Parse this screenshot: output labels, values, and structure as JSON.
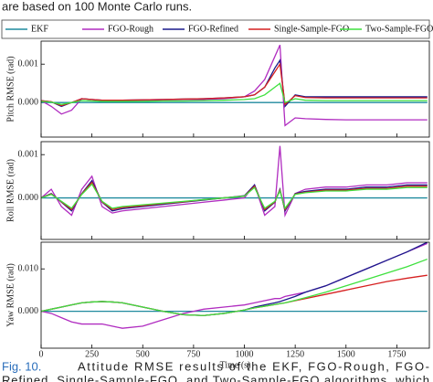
{
  "page": {
    "header_text": "are based on 100 Monte Carlo runs.",
    "caption": {
      "label": "Fig. 10.",
      "line1": "Attitude RMSE results of the EKF, FGO-Rough, FGO-",
      "line2": "Refined, Single-Sample-FGO, and Two-Sample-FGO algorithms, which"
    }
  },
  "chart_data": [
    {
      "type": "line",
      "ylabel": "Pitch RMSE (rad)",
      "x": [
        0,
        50,
        100,
        150,
        200,
        250,
        300,
        350,
        400,
        500,
        600,
        700,
        800,
        900,
        1000,
        1050,
        1100,
        1150,
        1175,
        1200,
        1250,
        1300,
        1400,
        1500,
        1600,
        1700,
        1800,
        1900
      ],
      "xlim": [
        0,
        1910
      ],
      "xticks": [
        0,
        250,
        500,
        750,
        1000,
        1250,
        1500,
        1750
      ],
      "ylim": [
        -0.0009,
        0.0016
      ],
      "yticks": [
        {
          "value": 0,
          "label": "0.000"
        },
        {
          "value": 0.001,
          "label": "0.001"
        }
      ],
      "series": [
        {
          "name": "EKF",
          "color": "#1f8a9e",
          "values": [
            0,
            0,
            0,
            0,
            0,
            0,
            0,
            0,
            0,
            0,
            0,
            0,
            0,
            0,
            0,
            0,
            0,
            0,
            0,
            0,
            0,
            0,
            0,
            0,
            0,
            0,
            0,
            0
          ]
        },
        {
          "name": "FGO-Rough",
          "color": "#b02cc0",
          "values": [
            5e-05,
            -0.0001,
            -0.0003,
            -0.0002,
            0.0001,
            8e-05,
            5e-05,
            5e-05,
            5e-05,
            6e-05,
            7e-05,
            8e-05,
            8e-05,
            0.0001,
            0.00015,
            0.0003,
            0.0006,
            0.0012,
            0.0015,
            -0.0006,
            -0.0004,
            -0.00042,
            -0.00044,
            -0.00045,
            -0.00045,
            -0.00045,
            -0.00045,
            -0.00045
          ]
        },
        {
          "name": "FGO-Refined",
          "color": "#1a1a8c",
          "values": [
            5e-05,
            2e-05,
            -0.0001,
            0,
            0.0001,
            8e-05,
            6e-05,
            6e-05,
            6e-05,
            7e-05,
            8e-05,
            9e-05,
            0.0001,
            0.00012,
            0.00015,
            0.0002,
            0.0004,
            0.0009,
            0.0011,
            -0.0001,
            0.0002,
            0.00015,
            0.00015,
            0.00015,
            0.00015,
            0.00015,
            0.00015,
            0.00015
          ]
        },
        {
          "name": "Single-Sample-FGO",
          "color": "#d62020",
          "values": [
            5e-05,
            2e-05,
            -8e-05,
            0,
            0.0001,
            8e-05,
            6e-05,
            6e-05,
            6e-05,
            7e-05,
            8e-05,
            9e-05,
            0.0001,
            0.00012,
            0.00015,
            0.0002,
            0.0004,
            0.0008,
            0.001,
            -5e-05,
            0.00018,
            0.00013,
            0.00012,
            0.00012,
            0.00012,
            0.00012,
            0.00012,
            0.00012
          ]
        },
        {
          "name": "Two-Sample-FGO",
          "color": "#3ee03e",
          "values": [
            3e-05,
            1e-05,
            -5e-05,
            0,
            5e-05,
            4e-05,
            3e-05,
            3e-05,
            3e-05,
            3e-05,
            4e-05,
            4e-05,
            5e-05,
            6e-05,
            8e-05,
            0.0001,
            0.0002,
            0.0004,
            0.0005,
            0,
            0.0001,
            6e-05,
            5e-05,
            5e-05,
            5e-05,
            5e-05,
            5e-05,
            5e-05
          ]
        }
      ]
    },
    {
      "type": "line",
      "ylabel": "Roll RMSE (rad)",
      "x": [
        0,
        50,
        100,
        150,
        200,
        250,
        300,
        350,
        400,
        500,
        600,
        700,
        800,
        900,
        1000,
        1050,
        1100,
        1150,
        1175,
        1200,
        1250,
        1300,
        1400,
        1500,
        1600,
        1700,
        1800,
        1900
      ],
      "xlim": [
        0,
        1910
      ],
      "xticks": [
        0,
        250,
        500,
        750,
        1000,
        1250,
        1500,
        1750
      ],
      "ylim": [
        -0.00096,
        0.0013
      ],
      "yticks": [
        {
          "value": 0,
          "label": "0.000"
        },
        {
          "value": 0.001,
          "label": "0.001"
        }
      ],
      "series": [
        {
          "color": "#1f8a9e",
          "values": [
            0,
            0,
            0,
            0,
            0,
            0,
            0,
            0,
            0,
            0,
            0,
            0,
            0,
            0,
            0,
            0,
            0,
            0,
            0,
            0,
            0,
            0,
            0,
            0,
            0,
            0,
            0,
            0
          ]
        },
        {
          "color": "#b02cc0",
          "values": [
            0,
            0.0002,
            -0.0002,
            -0.0004,
            0.0002,
            0.0005,
            -0.0002,
            -0.00035,
            -0.0003,
            -0.00025,
            -0.0002,
            -0.00015,
            -0.0001,
            -5e-05,
            0,
            0.0003,
            -0.0004,
            -0.0002,
            0.0012,
            -0.0004,
            0.0001,
            0.0002,
            0.00025,
            0.00025,
            0.0003,
            0.0003,
            0.00035,
            0.00035
          ]
        },
        {
          "color": "#1a1a8c",
          "values": [
            0,
            0.0001,
            -0.0001,
            -0.0003,
            0.0001,
            0.0004,
            -0.0001,
            -0.0003,
            -0.00025,
            -0.0002,
            -0.00015,
            -0.0001,
            -5e-05,
            0,
            5e-05,
            0.0003,
            -0.0003,
            -0.0001,
            0.0002,
            -0.0003,
            0.0001,
            0.00015,
            0.0002,
            0.0002,
            0.00025,
            0.00025,
            0.0003,
            0.0003
          ]
        },
        {
          "color": "#d62020",
          "values": [
            0,
            9e-05,
            -9e-05,
            -0.00027,
            9e-05,
            0.00036,
            -9e-05,
            -0.00027,
            -0.00022,
            -0.00018,
            -0.00013,
            -9e-05,
            -4e-05,
            0,
            4e-05,
            0.00027,
            -0.00027,
            -9e-05,
            0.00018,
            -0.00027,
            9e-05,
            0.00013,
            0.00018,
            0.00018,
            0.00022,
            0.00022,
            0.00027,
            0.00027
          ]
        },
        {
          "color": "#3ee03e",
          "values": [
            0,
            8e-05,
            -8e-05,
            -0.00024,
            8e-05,
            0.00032,
            -8e-05,
            -0.00024,
            -0.0002,
            -0.00016,
            -0.00012,
            -8e-05,
            -4e-05,
            0,
            4e-05,
            0.00024,
            -0.00024,
            -8e-05,
            0.00016,
            -0.00024,
            8e-05,
            0.00012,
            0.00016,
            0.00016,
            0.0002,
            0.0002,
            0.00024,
            0.00024
          ]
        }
      ]
    },
    {
      "type": "line",
      "ylabel": "Yaw RMSE (rad)",
      "xlabel": "Time (s)",
      "x": [
        0,
        50,
        100,
        150,
        200,
        250,
        300,
        350,
        400,
        500,
        600,
        700,
        800,
        900,
        1000,
        1050,
        1100,
        1150,
        1175,
        1200,
        1250,
        1300,
        1400,
        1500,
        1600,
        1700,
        1800,
        1900
      ],
      "xlim": [
        0,
        1910
      ],
      "xticks": [
        0,
        250,
        500,
        750,
        1000,
        1250,
        1500,
        1750
      ],
      "ylim": [
        -0.0087,
        0.0163
      ],
      "yticks": [
        {
          "value": 0,
          "label": "0.000"
        },
        {
          "value": 0.01,
          "label": "0.010"
        }
      ],
      "series": [
        {
          "color": "#1f8a9e",
          "values": [
            0,
            0,
            0,
            0,
            0,
            0,
            0,
            0,
            0,
            0,
            0,
            0,
            0,
            0,
            0,
            0,
            0,
            0,
            0,
            0,
            0,
            0,
            0,
            0,
            0,
            0,
            0,
            0
          ]
        },
        {
          "color": "#b02cc0",
          "values": [
            0,
            -0.0005,
            -0.0015,
            -0.0025,
            -0.003,
            -0.003,
            -0.003,
            -0.0035,
            -0.004,
            -0.0035,
            -0.002,
            -0.0005,
            0.0005,
            0.001,
            0.0015,
            0.002,
            0.0025,
            0.003,
            0.003,
            0.0035,
            0.004,
            0.0045,
            0.006,
            0.008,
            0.01,
            0.012,
            0.014,
            0.016
          ]
        },
        {
          "color": "#1a1a8c",
          "values": [
            0,
            0.0005,
            0.001,
            0.0015,
            0.002,
            0.0022,
            0.0023,
            0.0022,
            0.002,
            0.001,
            0,
            -0.0008,
            -0.001,
            -0.0005,
            0.0003,
            0.001,
            0.0015,
            0.002,
            0.0023,
            0.0027,
            0.0035,
            0.0045,
            0.006,
            0.008,
            0.01,
            0.012,
            0.014,
            0.0163
          ]
        },
        {
          "color": "#d62020",
          "values": [
            0,
            0.0005,
            0.001,
            0.0015,
            0.002,
            0.0022,
            0.0023,
            0.0022,
            0.002,
            0.001,
            0,
            -0.0008,
            -0.001,
            -0.0005,
            0.0003,
            0.0008,
            0.0012,
            0.0016,
            0.0018,
            0.002,
            0.0025,
            0.003,
            0.004,
            0.005,
            0.006,
            0.007,
            0.0078,
            0.0085
          ]
        },
        {
          "color": "#3ee03e",
          "values": [
            0,
            0.0005,
            0.001,
            0.0015,
            0.002,
            0.0022,
            0.0023,
            0.0022,
            0.002,
            0.001,
            0,
            -0.0008,
            -0.001,
            -0.0005,
            0.0003,
            0.0008,
            0.0012,
            0.0016,
            0.0018,
            0.002,
            0.0026,
            0.0032,
            0.0045,
            0.006,
            0.0075,
            0.009,
            0.0105,
            0.0123
          ]
        }
      ]
    }
  ]
}
